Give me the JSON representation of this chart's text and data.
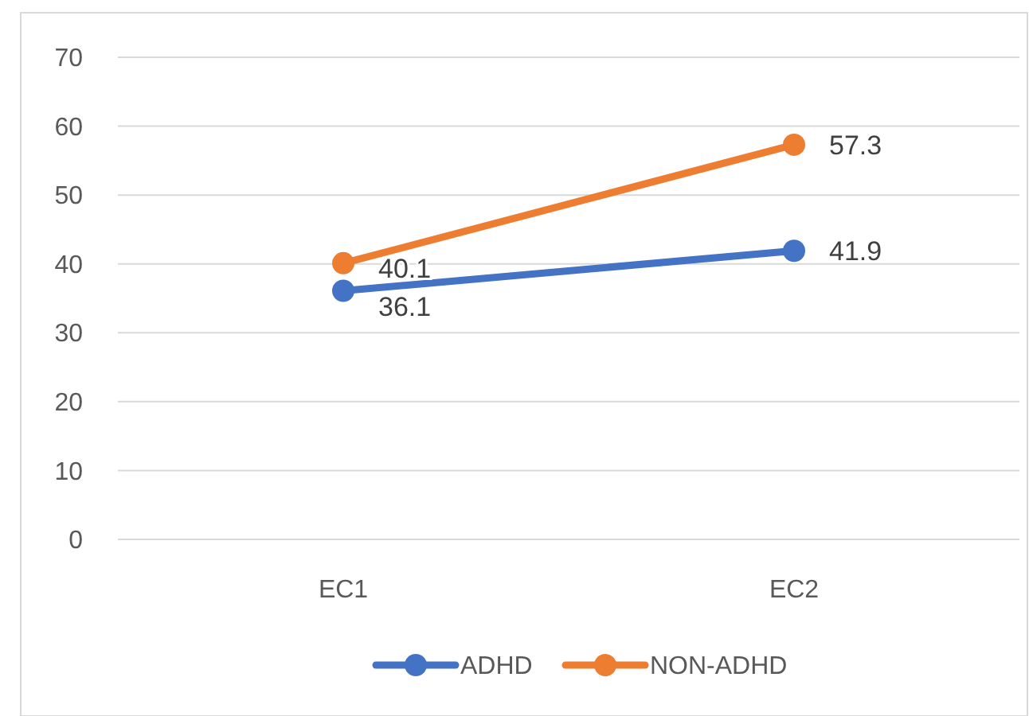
{
  "chart_data": {
    "type": "line",
    "categories": [
      "EC1",
      "EC2"
    ],
    "series": [
      {
        "name": "ADHD",
        "color": "#4472c4",
        "values": [
          36.1,
          41.9
        ]
      },
      {
        "name": "NON-ADHD",
        "color": "#ed7d31",
        "values": [
          40.1,
          57.3
        ]
      }
    ],
    "ylim": [
      0,
      70
    ],
    "yticks": [
      0,
      10,
      20,
      30,
      40,
      50,
      60,
      70
    ],
    "grid": "y",
    "legend": "bottom",
    "marker": "circle",
    "line_style": "solid",
    "data_labels": true
  }
}
